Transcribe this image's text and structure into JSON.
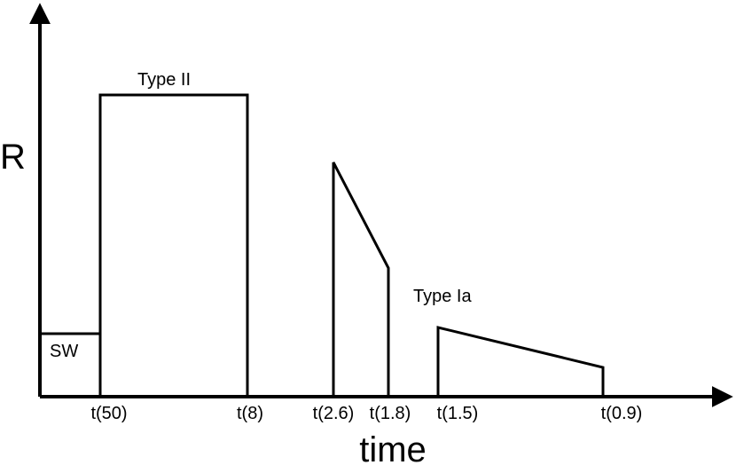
{
  "diagram": {
    "y_axis_label": "R",
    "x_axis_label": "time",
    "tick_labels": [
      "t(50)",
      "t(8)",
      "t(2.6)",
      "t(1.8)",
      "t(1.5)",
      "t(0.9)"
    ],
    "labels": {
      "sw": "SW",
      "type_ii": "Type II",
      "type_ia": "Type Ia"
    }
  }
}
